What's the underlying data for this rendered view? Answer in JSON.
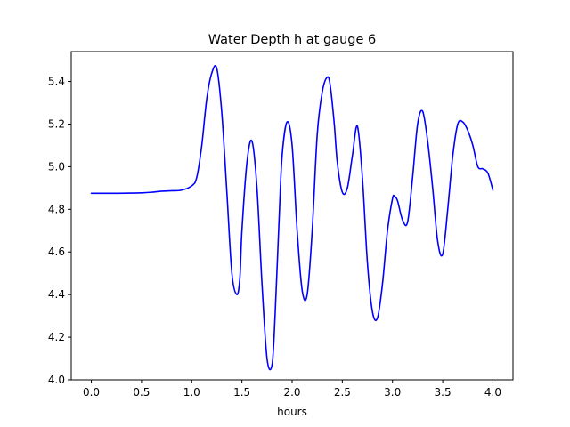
{
  "chart_data": {
    "type": "line",
    "title": "Water Depth h at gauge 6",
    "xlabel": "hours",
    "ylabel": "",
    "xlim": [
      -0.2,
      4.2
    ],
    "ylim": [
      4.0,
      5.54
    ],
    "xticks": [
      0.0,
      0.5,
      1.0,
      1.5,
      2.0,
      2.5,
      3.0,
      3.5,
      4.0
    ],
    "xtick_labels": [
      "0.0",
      "0.5",
      "1.0",
      "1.5",
      "2.0",
      "2.5",
      "3.0",
      "3.5",
      "4.0"
    ],
    "yticks": [
      4.0,
      4.2,
      4.4,
      4.6,
      4.8,
      5.0,
      5.2,
      5.4
    ],
    "ytick_labels": [
      "4.0",
      "4.2",
      "4.4",
      "4.6",
      "4.8",
      "5.0",
      "5.2",
      "5.4"
    ],
    "grid": false,
    "series": [
      {
        "color": "#0000ff",
        "x": [
          0.0,
          0.2,
          0.4,
          0.5,
          0.6,
          0.7,
          0.8,
          0.9,
          1.0,
          1.05,
          1.1,
          1.15,
          1.2,
          1.25,
          1.3,
          1.35,
          1.4,
          1.45,
          1.48,
          1.5,
          1.55,
          1.6,
          1.65,
          1.7,
          1.75,
          1.8,
          1.83,
          1.87,
          1.9,
          1.95,
          2.0,
          2.05,
          2.1,
          2.15,
          2.2,
          2.25,
          2.3,
          2.35,
          2.38,
          2.42,
          2.45,
          2.5,
          2.55,
          2.6,
          2.65,
          2.7,
          2.75,
          2.8,
          2.85,
          2.9,
          2.95,
          3.0,
          3.02,
          3.05,
          3.1,
          3.15,
          3.2,
          3.25,
          3.3,
          3.35,
          3.4,
          3.45,
          3.5,
          3.55,
          3.6,
          3.65,
          3.7,
          3.75,
          3.8,
          3.85,
          3.9,
          3.95,
          4.0
        ],
        "y": [
          4.875,
          4.875,
          4.876,
          4.877,
          4.88,
          4.885,
          4.887,
          4.89,
          4.91,
          4.95,
          5.1,
          5.32,
          5.44,
          5.46,
          5.25,
          4.88,
          4.5,
          4.4,
          4.48,
          4.7,
          5.02,
          5.12,
          4.9,
          4.45,
          4.1,
          4.07,
          4.3,
          4.75,
          5.05,
          5.21,
          5.1,
          4.7,
          4.42,
          4.4,
          4.7,
          5.15,
          5.35,
          5.42,
          5.38,
          5.2,
          5.02,
          4.88,
          4.9,
          5.05,
          5.19,
          4.95,
          4.55,
          4.32,
          4.29,
          4.45,
          4.7,
          4.85,
          4.86,
          4.84,
          4.75,
          4.74,
          4.95,
          5.2,
          5.26,
          5.12,
          4.9,
          4.65,
          4.59,
          4.8,
          5.05,
          5.2,
          5.21,
          5.17,
          5.1,
          5.0,
          4.99,
          4.97,
          4.89
        ]
      }
    ]
  }
}
